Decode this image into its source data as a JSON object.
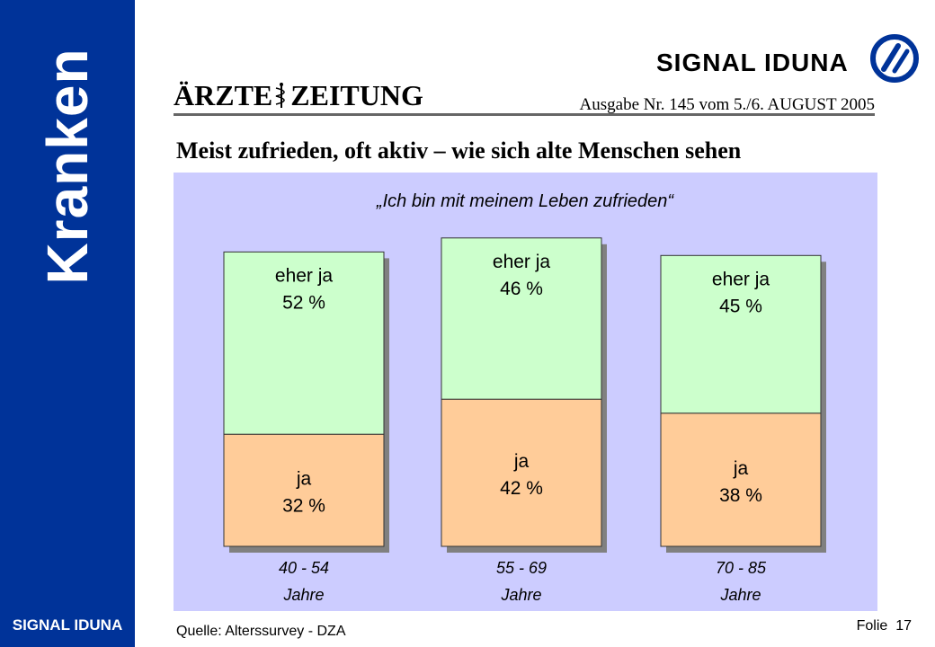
{
  "sidebar": {
    "title": "Kranken",
    "brand": "SIGNAL IDUNA"
  },
  "header": {
    "brand_wordmark": "SIGNAL IDUNA",
    "brand_logo_icon": "signal-iduna-logo-icon",
    "newspaper": {
      "part1": "ÄRZTE",
      "part2": "ZEITUNG",
      "icon": "caduceus-icon"
    },
    "issue_line": "Ausgabe Nr. 145 vom 5./6. AUGUST 2005",
    "headline": "Meist zufrieden, oft aktiv – wie sich alte Menschen sehen"
  },
  "colors": {
    "sidebar": "#003399",
    "chart_bg": "#ccccff",
    "eher_ja": "#ccffcc",
    "ja": "#ffcc99",
    "bar_shadow": "#808080"
  },
  "chart_data": {
    "type": "bar",
    "stacked": true,
    "title": "„Ich bin mit meinem Leben zufrieden“",
    "categories": [
      {
        "line1": "40 - 54",
        "line2": "Jahre"
      },
      {
        "line1": "55 - 69",
        "line2": "Jahre"
      },
      {
        "line1": "70 - 85",
        "line2": "Jahre"
      }
    ],
    "series": [
      {
        "name": "ja",
        "values": [
          32,
          42,
          38
        ],
        "labels": [
          "32 %",
          "42 %",
          "38 %"
        ]
      },
      {
        "name": "eher ja",
        "values": [
          52,
          46,
          45
        ],
        "labels": [
          "52 %",
          "46 %",
          "45 %"
        ]
      }
    ],
    "ylim": [
      0,
      100
    ]
  },
  "footer": {
    "source": "Quelle: Alterssurvey - DZA",
    "slide_label": "Folie",
    "slide_number": "17"
  }
}
